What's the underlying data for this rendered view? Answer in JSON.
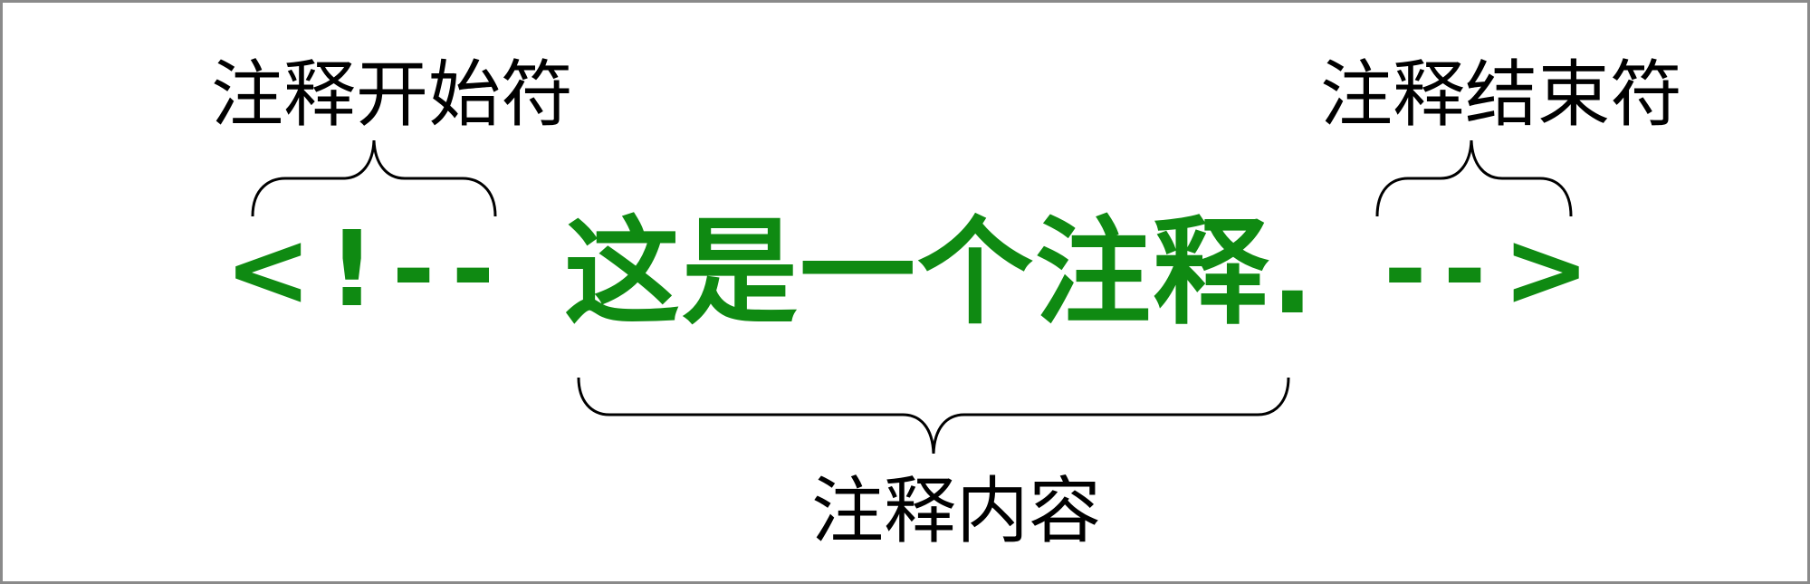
{
  "labels": {
    "start": "注释开始符",
    "end": "注释结束符",
    "content": "注释内容"
  },
  "code": {
    "open": "<!--",
    "text": "这是一个注释.",
    "close": "-->",
    "color": "#0f8a12"
  },
  "colors": {
    "border": "#8a8a8a",
    "label": "#000000",
    "brace": "#000000"
  }
}
